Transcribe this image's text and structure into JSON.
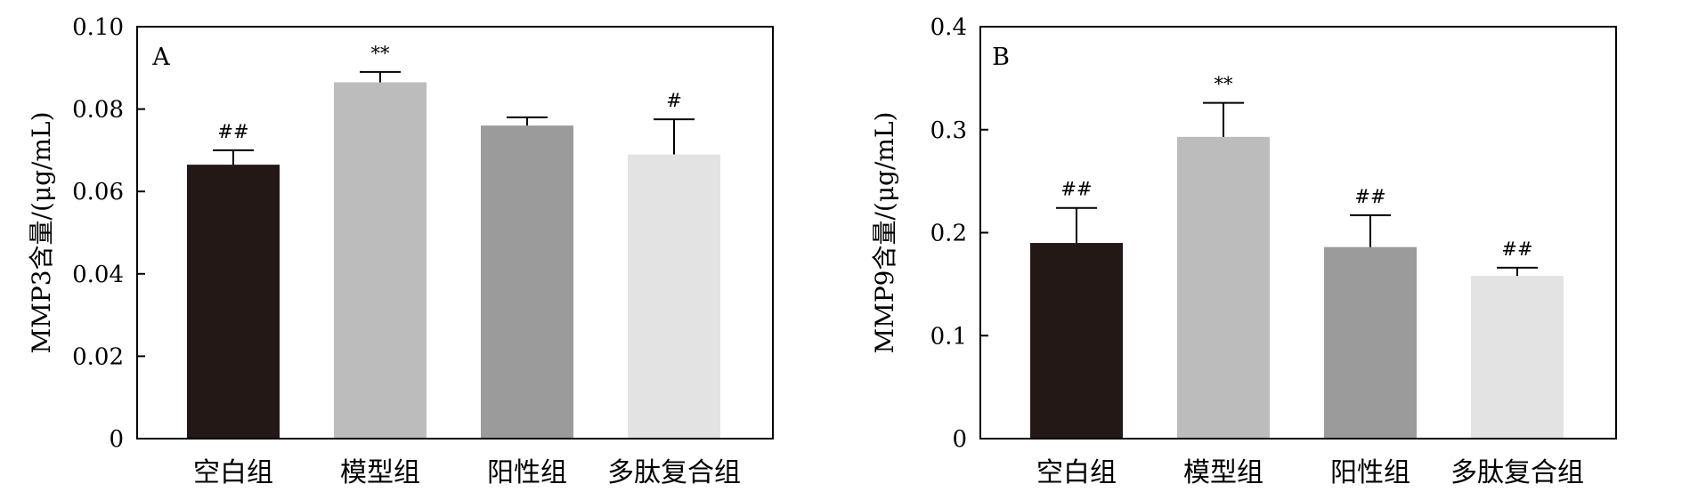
{
  "chart_data": [
    {
      "type": "bar",
      "panel": "A",
      "ylabel": "MMP3含量/(μg/mL)",
      "categories": [
        "空白组",
        "模型组",
        "阳性组",
        "多肽复合组"
      ],
      "values": [
        0.0665,
        0.0865,
        0.076,
        0.069
      ],
      "errors": [
        0.0035,
        0.0025,
        0.002,
        0.0085
      ],
      "annotations": [
        "##",
        "**",
        "",
        "#"
      ],
      "colors": [
        "#231815",
        "#bbbcbb",
        "#9a9b9a",
        "#e3e3e3"
      ],
      "ylim": [
        0,
        0.1
      ],
      "yticks": [
        "0",
        "0.02",
        "0.04",
        "0.06",
        "0.08",
        "0.10"
      ],
      "grid": false
    },
    {
      "type": "bar",
      "panel": "B",
      "ylabel": "MMP9含量/(μg/mL)",
      "categories": [
        "空白组",
        "模型组",
        "阳性组",
        "多肽复合组"
      ],
      "values": [
        0.19,
        0.293,
        0.186,
        0.158
      ],
      "errors": [
        0.034,
        0.033,
        0.031,
        0.008
      ],
      "annotations": [
        "##",
        "**",
        "##",
        "##"
      ],
      "colors": [
        "#231815",
        "#bbbcbb",
        "#9a9b9a",
        "#e3e3e3"
      ],
      "ylim": [
        0,
        0.4
      ],
      "yticks": [
        "0",
        "0.1",
        "0.2",
        "0.3",
        "0.4"
      ],
      "grid": false
    }
  ]
}
